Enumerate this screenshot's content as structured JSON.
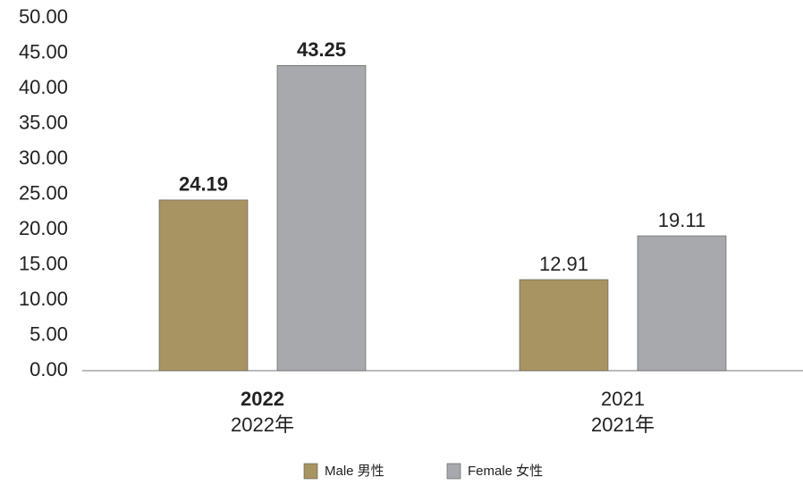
{
  "chart_data": {
    "type": "bar",
    "categories": [
      [
        "2022",
        "2022年"
      ],
      [
        "2021",
        "2021年"
      ]
    ],
    "series": [
      {
        "name": "Male 男性",
        "color": "#a89462",
        "values": [
          24.19,
          12.91
        ]
      },
      {
        "name": "Female 女性",
        "color": "#a7a9ac",
        "values": [
          43.25,
          19.11
        ]
      }
    ],
    "ylim": [
      0,
      50
    ],
    "yticks": [
      {
        "value": 0,
        "label": "0.00"
      },
      {
        "value": 5,
        "label": "5.00"
      },
      {
        "value": 10,
        "label": "10.00"
      },
      {
        "value": 15,
        "label": "15.00"
      },
      {
        "value": 20,
        "label": "20.00"
      },
      {
        "value": 25,
        "label": "25.00"
      },
      {
        "value": 30,
        "label": "30.00"
      },
      {
        "value": 35,
        "label": "35.00"
      },
      {
        "value": 40,
        "label": "40.00"
      },
      {
        "value": 45,
        "label": "45.00"
      },
      {
        "value": 50,
        "label": "50.00"
      }
    ],
    "grid": false,
    "legend": "bottom"
  }
}
